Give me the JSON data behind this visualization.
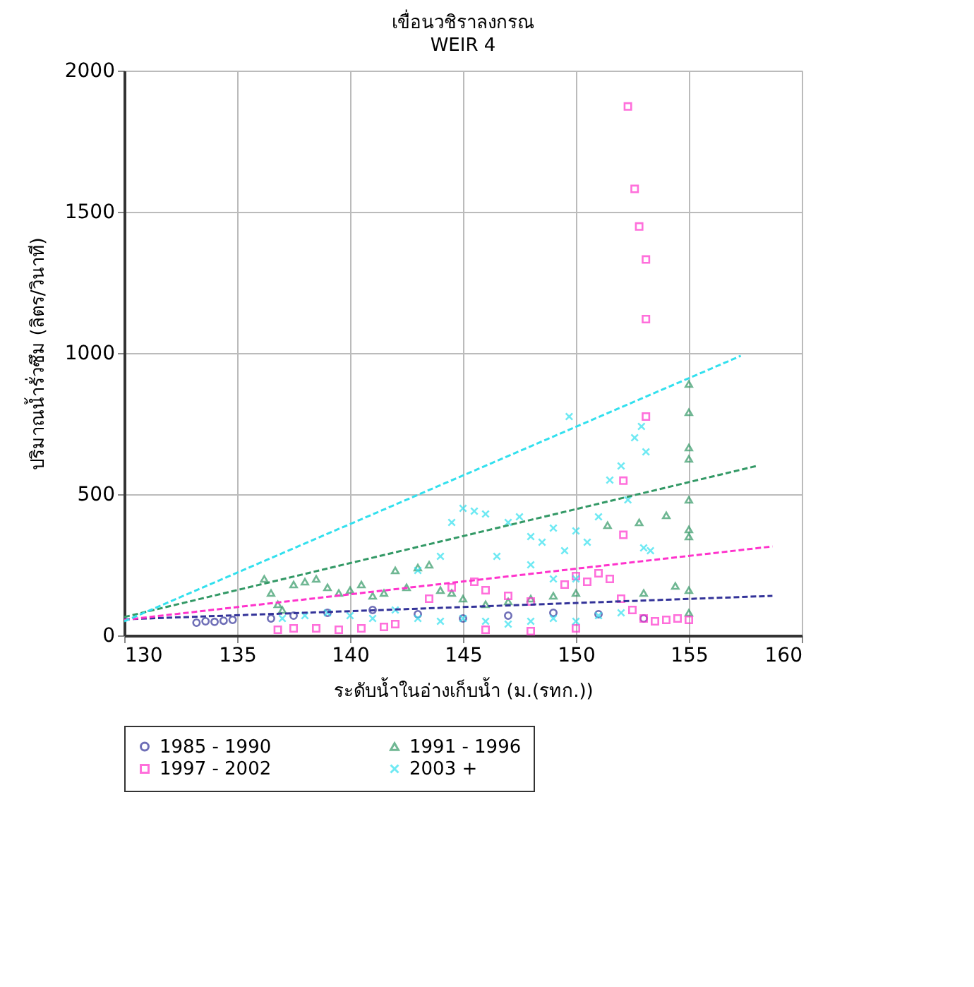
{
  "chart_data": {
    "type": "scatter",
    "title": "เขื่อนวชิราลงกรณ",
    "subtitle": "WEIR 4",
    "xlabel": "ระดับน้ำในอ่างเก็บน้ำ (ม.(รทก.))",
    "ylabel": "ปริมาณน้ำรั่วซึม (ลิตร/วินาที)",
    "xlim": [
      130,
      160
    ],
    "xticks": [
      130,
      135,
      140,
      145,
      150,
      155,
      160
    ],
    "ylim": [
      0,
      2000
    ],
    "yticks": [
      0,
      500,
      1000,
      1500,
      2000
    ],
    "grid": true,
    "legend": "bottom",
    "series": [
      {
        "name": "1985 - 1990",
        "color": "#333399",
        "marker": "circle",
        "x": [
          133.2,
          133.6,
          134.0,
          134.4,
          134.8,
          136.5,
          137.5,
          139,
          141,
          143,
          145,
          147,
          149,
          151,
          153
        ],
        "values": [
          45,
          50,
          48,
          52,
          55,
          60,
          70,
          80,
          90,
          75,
          60,
          70,
          80,
          75,
          60
        ]
      },
      {
        "name": "1991 - 1996",
        "color": "#339966",
        "marker": "triangle",
        "x": [
          136.2,
          136.5,
          136.8,
          137,
          137.5,
          138,
          138.5,
          139,
          139.5,
          140,
          140.5,
          141,
          141.5,
          142,
          142.5,
          143,
          143.5,
          144,
          144.5,
          145,
          146,
          147,
          148,
          149,
          150,
          151.4,
          152.8,
          154.0,
          154.4,
          153,
          155,
          155,
          155,
          155,
          155,
          155,
          155,
          155,
          155
        ],
        "values": [
          200,
          150,
          110,
          90,
          180,
          190,
          200,
          170,
          150,
          160,
          180,
          140,
          150,
          230,
          170,
          240,
          250,
          160,
          150,
          130,
          110,
          120,
          130,
          140,
          150,
          390,
          400,
          425,
          175,
          150,
          890,
          790,
          665,
          625,
          480,
          375,
          350,
          160,
          80
        ]
      },
      {
        "name": "1997 - 2002",
        "color": "#ff33cc",
        "marker": "square",
        "x": [
          136.8,
          137.5,
          138.5,
          139.5,
          140.5,
          141.5,
          142,
          143.5,
          144.5,
          145.5,
          146,
          147,
          148,
          149.5,
          150,
          150.5,
          151,
          151.5,
          152,
          152.5,
          153,
          153.5,
          154,
          154.5,
          155,
          146,
          148,
          150,
          152.1,
          152.1,
          153.1,
          152.3,
          152.6,
          152.8,
          153.1,
          153.1
        ],
        "values": [
          20,
          25,
          25,
          20,
          25,
          30,
          40,
          130,
          170,
          190,
          160,
          140,
          120,
          180,
          210,
          190,
          220,
          200,
          130,
          90,
          60,
          50,
          55,
          60,
          55,
          20,
          15,
          25,
          548,
          356,
          775,
          1873,
          1581,
          1448,
          1331,
          1120
        ]
      },
      {
        "name": "2003 +",
        "color": "#33e0ee",
        "marker": "cross",
        "x": [
          143,
          144,
          144.5,
          145,
          145.5,
          146,
          147,
          147.5,
          148,
          148.5,
          149,
          149.5,
          150,
          150.5,
          151,
          151.5,
          152,
          152.3,
          152.6,
          152.9,
          153.1,
          153.3,
          153,
          149.7,
          146.5,
          148,
          149,
          150,
          137,
          138,
          139,
          140,
          141,
          142,
          143,
          144,
          145,
          146,
          147,
          148,
          149,
          150,
          151,
          152
        ],
        "values": [
          230,
          280,
          400,
          450,
          440,
          430,
          400,
          420,
          350,
          330,
          380,
          300,
          370,
          330,
          420,
          550,
          600,
          480,
          700,
          740,
          650,
          300,
          310,
          775,
          280,
          250,
          200,
          200,
          60,
          70,
          80,
          70,
          60,
          90,
          60,
          50,
          60,
          50,
          40,
          50,
          60,
          50,
          70,
          80
        ]
      },
      {
        "type": "line",
        "color": "#333399",
        "line_style": "dashed",
        "x": [
          130,
          158.7
        ],
        "values": [
          57,
          140
        ]
      },
      {
        "type": "line",
        "color": "#339966",
        "line_style": "dashed",
        "x": [
          130,
          158
        ],
        "values": [
          65,
          600
        ]
      },
      {
        "type": "line",
        "color": "#ff33cc",
        "line_style": "dashed",
        "x": [
          130,
          158.7
        ],
        "values": [
          55,
          315
        ]
      },
      {
        "type": "line",
        "color": "#33e0ee",
        "line_style": "dashed",
        "x": [
          130,
          157.3
        ],
        "values": [
          50,
          990
        ]
      }
    ]
  }
}
